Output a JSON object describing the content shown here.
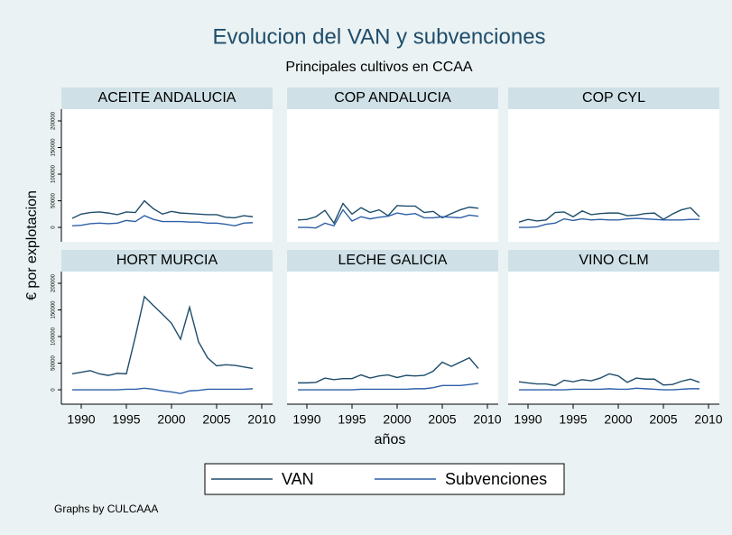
{
  "title": "Evolucion del VAN y subvenciones",
  "subtitle": "Principales cultivos en CCAA",
  "x_label": "años",
  "y_label": "€ por explotacion",
  "note": "Graphs by CULCAAA",
  "chart_data": [
    {
      "type": "line",
      "title": "ACEITE ANDALUCIA",
      "x": [
        1989,
        1990,
        1991,
        1992,
        1993,
        1994,
        1995,
        1996,
        1997,
        1998,
        1999,
        2000,
        2001,
        2002,
        2003,
        2004,
        2005,
        2006,
        2007,
        2008,
        2009
      ],
      "series": [
        {
          "name": "VAN",
          "color": "#1e4d6b",
          "values": [
            17000,
            25000,
            28000,
            29000,
            27000,
            24000,
            29000,
            28000,
            50000,
            35000,
            25000,
            30000,
            27000,
            26000,
            25000,
            24000,
            24000,
            19000,
            18000,
            22000,
            20000
          ]
        },
        {
          "name": "Subvenciones",
          "color": "#2d5fa8",
          "values": [
            3000,
            4000,
            7000,
            8000,
            7000,
            8000,
            13000,
            11000,
            22000,
            15000,
            11000,
            11000,
            11000,
            10000,
            10000,
            8000,
            8000,
            6000,
            3000,
            8000,
            9000
          ]
        }
      ],
      "xlim": [
        1987.8,
        2011.2
      ],
      "ylim": [
        -27000,
        222000
      ],
      "yticks": [
        0,
        50000,
        100000,
        150000,
        200000
      ]
    },
    {
      "type": "line",
      "title": "COP ANDALUCIA",
      "x": [
        1989,
        1990,
        1991,
        1992,
        1993,
        1994,
        1995,
        1996,
        1997,
        1998,
        1999,
        2000,
        2001,
        2002,
        2003,
        2004,
        2005,
        2006,
        2007,
        2008,
        2009
      ],
      "series": [
        {
          "name": "VAN",
          "color": "#1e4d6b",
          "values": [
            14000,
            15000,
            20000,
            32000,
            8000,
            45000,
            25000,
            37000,
            28000,
            33000,
            22000,
            41000,
            40000,
            40000,
            28000,
            30000,
            18000,
            26000,
            33000,
            38000,
            36000
          ]
        },
        {
          "name": "Subvenciones",
          "color": "#2d5fa8",
          "values": [
            0,
            0,
            -1000,
            8000,
            3000,
            33000,
            12000,
            20000,
            16000,
            19000,
            21000,
            27000,
            24000,
            26000,
            18000,
            18000,
            20000,
            19000,
            18000,
            23000,
            21000
          ]
        }
      ],
      "xlim": [
        1987.8,
        2011.2
      ],
      "ylim": [
        -27000,
        222000
      ]
    },
    {
      "type": "line",
      "title": "COP CYL",
      "x": [
        1989,
        1990,
        1991,
        1992,
        1993,
        1994,
        1995,
        1996,
        1997,
        1998,
        1999,
        2000,
        2001,
        2002,
        2003,
        2004,
        2005,
        2006,
        2007,
        2008,
        2009
      ],
      "series": [
        {
          "name": "VAN",
          "color": "#1e4d6b",
          "values": [
            10000,
            15000,
            12000,
            14000,
            28000,
            29000,
            20000,
            31000,
            24000,
            26000,
            27000,
            27000,
            22000,
            23000,
            26000,
            27000,
            15000,
            25000,
            33000,
            37000,
            20000
          ]
        },
        {
          "name": "Subvenciones",
          "color": "#2d5fa8",
          "values": [
            0,
            0,
            1000,
            6000,
            8000,
            16000,
            13000,
            16000,
            14000,
            15000,
            14000,
            14000,
            16000,
            17000,
            16000,
            15000,
            14000,
            14000,
            14000,
            15000,
            15000
          ]
        }
      ],
      "xlim": [
        1987.8,
        2011.2
      ],
      "ylim": [
        -27000,
        222000
      ]
    },
    {
      "type": "line",
      "title": "HORT MURCIA",
      "x": [
        1989,
        1990,
        1991,
        1992,
        1993,
        1994,
        1995,
        1996,
        1997,
        1998,
        1999,
        2000,
        2001,
        2002,
        2003,
        2004,
        2005,
        2006,
        2007,
        2008,
        2009
      ],
      "series": [
        {
          "name": "VAN",
          "color": "#1e4d6b",
          "values": [
            30000,
            33000,
            36000,
            30000,
            27000,
            31000,
            30000,
            100000,
            175000,
            158000,
            142000,
            125000,
            95000,
            155000,
            90000,
            60000,
            45000,
            47000,
            46000,
            43000,
            40000
          ]
        },
        {
          "name": "Subvenciones",
          "color": "#2d5fa8",
          "values": [
            0,
            0,
            0,
            0,
            0,
            0,
            1000,
            1000,
            3000,
            1000,
            -2000,
            -4000,
            -7000,
            -2000,
            -1000,
            1000,
            1000,
            1000,
            1000,
            1000,
            2000
          ]
        }
      ],
      "xlim": [
        1987.8,
        2011.2
      ],
      "ylim": [
        -27000,
        222000
      ],
      "yticks": [
        0,
        50000,
        100000,
        150000,
        200000
      ],
      "xticks": [
        1990,
        1995,
        2000,
        2005,
        2010
      ]
    },
    {
      "type": "line",
      "title": "LECHE GALICIA",
      "x": [
        1989,
        1990,
        1991,
        1992,
        1993,
        1994,
        1995,
        1996,
        1997,
        1998,
        1999,
        2000,
        2001,
        2002,
        2003,
        2004,
        2005,
        2006,
        2007,
        2008,
        2009
      ],
      "series": [
        {
          "name": "VAN",
          "color": "#1e4d6b",
          "values": [
            13000,
            13000,
            14000,
            22000,
            19000,
            21000,
            21000,
            28000,
            22000,
            26000,
            28000,
            23000,
            27000,
            26000,
            27000,
            35000,
            52000,
            44000,
            52000,
            60000,
            40000
          ]
        },
        {
          "name": "Subvenciones",
          "color": "#2d5fa8",
          "values": [
            0,
            0,
            0,
            0,
            0,
            0,
            0,
            1000,
            1000,
            1000,
            1000,
            1000,
            1000,
            2000,
            2000,
            4000,
            8000,
            8000,
            8000,
            10000,
            12000
          ]
        }
      ],
      "xlim": [
        1987.8,
        2011.2
      ],
      "ylim": [
        -27000,
        222000
      ],
      "xticks": [
        1990,
        1995,
        2000,
        2005,
        2010
      ]
    },
    {
      "type": "line",
      "title": "VINO CLM",
      "x": [
        1989,
        1990,
        1991,
        1992,
        1993,
        1994,
        1995,
        1996,
        1997,
        1998,
        1999,
        2000,
        2001,
        2002,
        2003,
        2004,
        2005,
        2006,
        2007,
        2008,
        2009
      ],
      "series": [
        {
          "name": "VAN",
          "color": "#1e4d6b",
          "values": [
            15000,
            13000,
            11000,
            11000,
            8000,
            18000,
            15000,
            19000,
            17000,
            22000,
            30000,
            26000,
            14000,
            22000,
            20000,
            20000,
            9000,
            10000,
            16000,
            20000,
            14000
          ]
        },
        {
          "name": "Subvenciones",
          "color": "#2d5fa8",
          "values": [
            0,
            0,
            0,
            0,
            0,
            0,
            1000,
            1000,
            1000,
            1000,
            2000,
            1000,
            1000,
            3000,
            2000,
            1000,
            0,
            0,
            1000,
            2000,
            2000
          ]
        }
      ],
      "xlim": [
        1987.8,
        2011.2
      ],
      "ylim": [
        -27000,
        222000
      ],
      "xticks": [
        1990,
        1995,
        2000,
        2005,
        2010
      ]
    }
  ]
}
